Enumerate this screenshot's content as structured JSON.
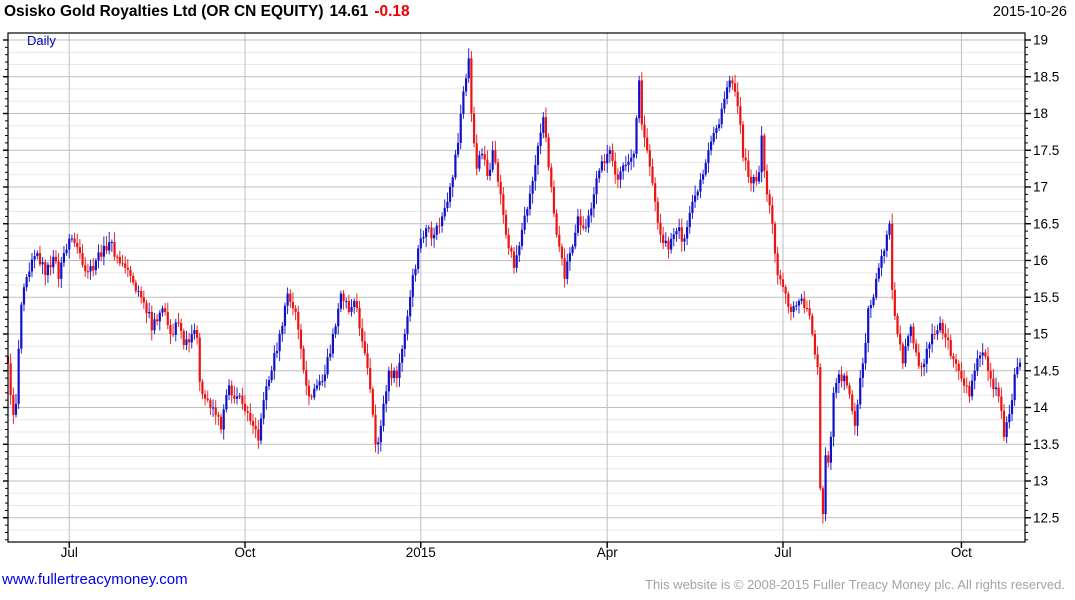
{
  "header": {
    "title": "Osisko Gold Royalties Ltd (OR CN EQUITY)",
    "last_price": "14.61",
    "change": "-0.18",
    "date": "2015-10-26"
  },
  "footer": {
    "site": "www.fullertreacymoney.com",
    "copyright": "This website is © 2008-2015 Fuller Treacy Money plc. All rights reserved."
  },
  "chart_data": {
    "type": "candlestick",
    "title": "Osisko Gold Royalties Ltd (OR CN EQUITY)",
    "frequency_label": "Daily",
    "last_price": 14.61,
    "change": -0.18,
    "date": "2015-10-26",
    "ylabel": "",
    "xlabel": "",
    "ylim": [
      12.17,
      19.09
    ],
    "y_ticks": [
      12.5,
      13,
      13.5,
      14,
      14.5,
      15,
      15.5,
      16,
      16.5,
      17,
      17.5,
      18,
      18.5,
      19
    ],
    "y_minor_tick_step": 0.1,
    "grid": "major-and-minor",
    "legend_position": "none",
    "up_color": "#1111cc",
    "down_color": "#ee1111",
    "grid_major_color": "#bfbfbf",
    "grid_minor_color": "#e8e8e8",
    "axis_color": "#000000",
    "total_days": 381,
    "x_ticks": [
      {
        "label": "Jul",
        "day": 23
      },
      {
        "label": "Oct",
        "day": 89
      },
      {
        "label": "2015",
        "day": 155
      },
      {
        "label": "Apr",
        "day": 225
      },
      {
        "label": "Jul",
        "day": 291
      },
      {
        "label": "Oct",
        "day": 358
      }
    ],
    "anchors": [
      [
        0,
        14.6
      ],
      [
        2,
        13.9
      ],
      [
        3,
        14.05
      ],
      [
        4,
        14.8
      ],
      [
        5,
        15.4
      ],
      [
        8,
        15.85
      ],
      [
        11,
        16.1
      ],
      [
        14,
        15.8
      ],
      [
        17,
        16.05
      ],
      [
        19,
        15.75
      ],
      [
        21,
        16.1
      ],
      [
        24,
        16.3
      ],
      [
        27,
        16.1
      ],
      [
        30,
        15.85
      ],
      [
        33,
        16.0
      ],
      [
        36,
        16.2
      ],
      [
        38,
        16.25
      ],
      [
        41,
        16.05
      ],
      [
        44,
        15.9
      ],
      [
        47,
        15.7
      ],
      [
        50,
        15.5
      ],
      [
        53,
        15.3
      ],
      [
        54,
        15.05
      ],
      [
        55,
        15.2
      ],
      [
        58,
        15.35
      ],
      [
        61,
        15.0
      ],
      [
        64,
        15.15
      ],
      [
        66,
        14.85
      ],
      [
        69,
        15.0
      ],
      [
        71,
        14.95
      ],
      [
        72,
        14.35
      ],
      [
        75,
        14.1
      ],
      [
        78,
        13.9
      ],
      [
        80,
        13.7
      ],
      [
        83,
        14.3
      ],
      [
        86,
        14.15
      ],
      [
        89,
        13.95
      ],
      [
        92,
        13.75
      ],
      [
        94,
        13.55
      ],
      [
        96,
        14.1
      ],
      [
        99,
        14.5
      ],
      [
        102,
        15.0
      ],
      [
        105,
        15.55
      ],
      [
        108,
        15.3
      ],
      [
        110,
        14.8
      ],
      [
        113,
        14.15
      ],
      [
        116,
        14.3
      ],
      [
        119,
        14.45
      ],
      [
        122,
        15.0
      ],
      [
        125,
        15.55
      ],
      [
        128,
        15.3
      ],
      [
        130,
        15.45
      ],
      [
        133,
        14.9
      ],
      [
        136,
        14.25
      ],
      [
        137,
        13.9
      ],
      [
        138,
        13.5
      ],
      [
        140,
        13.75
      ],
      [
        143,
        14.5
      ],
      [
        146,
        14.4
      ],
      [
        149,
        15.0
      ],
      [
        152,
        15.8
      ],
      [
        155,
        16.3
      ],
      [
        158,
        16.45
      ],
      [
        160,
        16.35
      ],
      [
        163,
        16.6
      ],
      [
        166,
        17.0
      ],
      [
        169,
        17.6
      ],
      [
        171,
        18.3
      ],
      [
        173,
        18.75
      ],
      [
        174,
        18.0
      ],
      [
        176,
        17.25
      ],
      [
        178,
        17.45
      ],
      [
        180,
        17.15
      ],
      [
        182,
        17.5
      ],
      [
        185,
        16.9
      ],
      [
        187,
        16.35
      ],
      [
        190,
        15.9
      ],
      [
        192,
        16.2
      ],
      [
        195,
        16.7
      ],
      [
        198,
        17.3
      ],
      [
        201,
        17.95
      ],
      [
        204,
        17.0
      ],
      [
        206,
        16.35
      ],
      [
        209,
        15.75
      ],
      [
        211,
        16.1
      ],
      [
        214,
        16.6
      ],
      [
        217,
        16.45
      ],
      [
        220,
        16.9
      ],
      [
        223,
        17.35
      ],
      [
        226,
        17.5
      ],
      [
        229,
        17.1
      ],
      [
        232,
        17.3
      ],
      [
        235,
        17.45
      ],
      [
        237,
        18.45
      ],
      [
        238,
        17.85
      ],
      [
        240,
        17.5
      ],
      [
        243,
        16.8
      ],
      [
        245,
        16.35
      ],
      [
        248,
        16.15
      ],
      [
        251,
        16.4
      ],
      [
        254,
        16.3
      ],
      [
        257,
        16.8
      ],
      [
        260,
        17.1
      ],
      [
        263,
        17.5
      ],
      [
        266,
        17.8
      ],
      [
        269,
        18.2
      ],
      [
        271,
        18.45
      ],
      [
        274,
        18.1
      ],
      [
        276,
        17.4
      ],
      [
        279,
        17.05
      ],
      [
        282,
        17.2
      ],
      [
        283,
        17.7
      ],
      [
        285,
        16.9
      ],
      [
        287,
        16.5
      ],
      [
        289,
        15.8
      ],
      [
        292,
        15.55
      ],
      [
        294,
        15.3
      ],
      [
        297,
        15.45
      ],
      [
        300,
        15.35
      ],
      [
        302,
        15.0
      ],
      [
        304,
        14.55
      ],
      [
        305,
        12.9
      ],
      [
        306,
        12.55
      ],
      [
        307,
        13.35
      ],
      [
        308,
        13.25
      ],
      [
        309,
        13.6
      ],
      [
        310,
        14.2
      ],
      [
        312,
        14.45
      ],
      [
        315,
        14.3
      ],
      [
        317,
        13.95
      ],
      [
        318,
        13.75
      ],
      [
        321,
        14.6
      ],
      [
        323,
        15.35
      ],
      [
        325,
        15.5
      ],
      [
        327,
        15.9
      ],
      [
        330,
        16.35
      ],
      [
        331,
        16.5
      ],
      [
        332,
        15.6
      ],
      [
        334,
        15.0
      ],
      [
        336,
        14.6
      ],
      [
        339,
        15.1
      ],
      [
        341,
        14.75
      ],
      [
        343,
        14.55
      ],
      [
        345,
        14.8
      ],
      [
        348,
        15.0
      ],
      [
        350,
        15.15
      ],
      [
        352,
        14.95
      ],
      [
        354,
        14.7
      ],
      [
        357,
        14.5
      ],
      [
        359,
        14.3
      ],
      [
        361,
        14.15
      ],
      [
        363,
        14.5
      ],
      [
        366,
        14.75
      ],
      [
        368,
        14.5
      ],
      [
        370,
        14.25
      ],
      [
        372,
        14.15
      ],
      [
        374,
        13.6
      ],
      [
        375,
        13.8
      ],
      [
        377,
        14.1
      ],
      [
        378,
        14.45
      ],
      [
        380,
        14.61
      ]
    ]
  }
}
